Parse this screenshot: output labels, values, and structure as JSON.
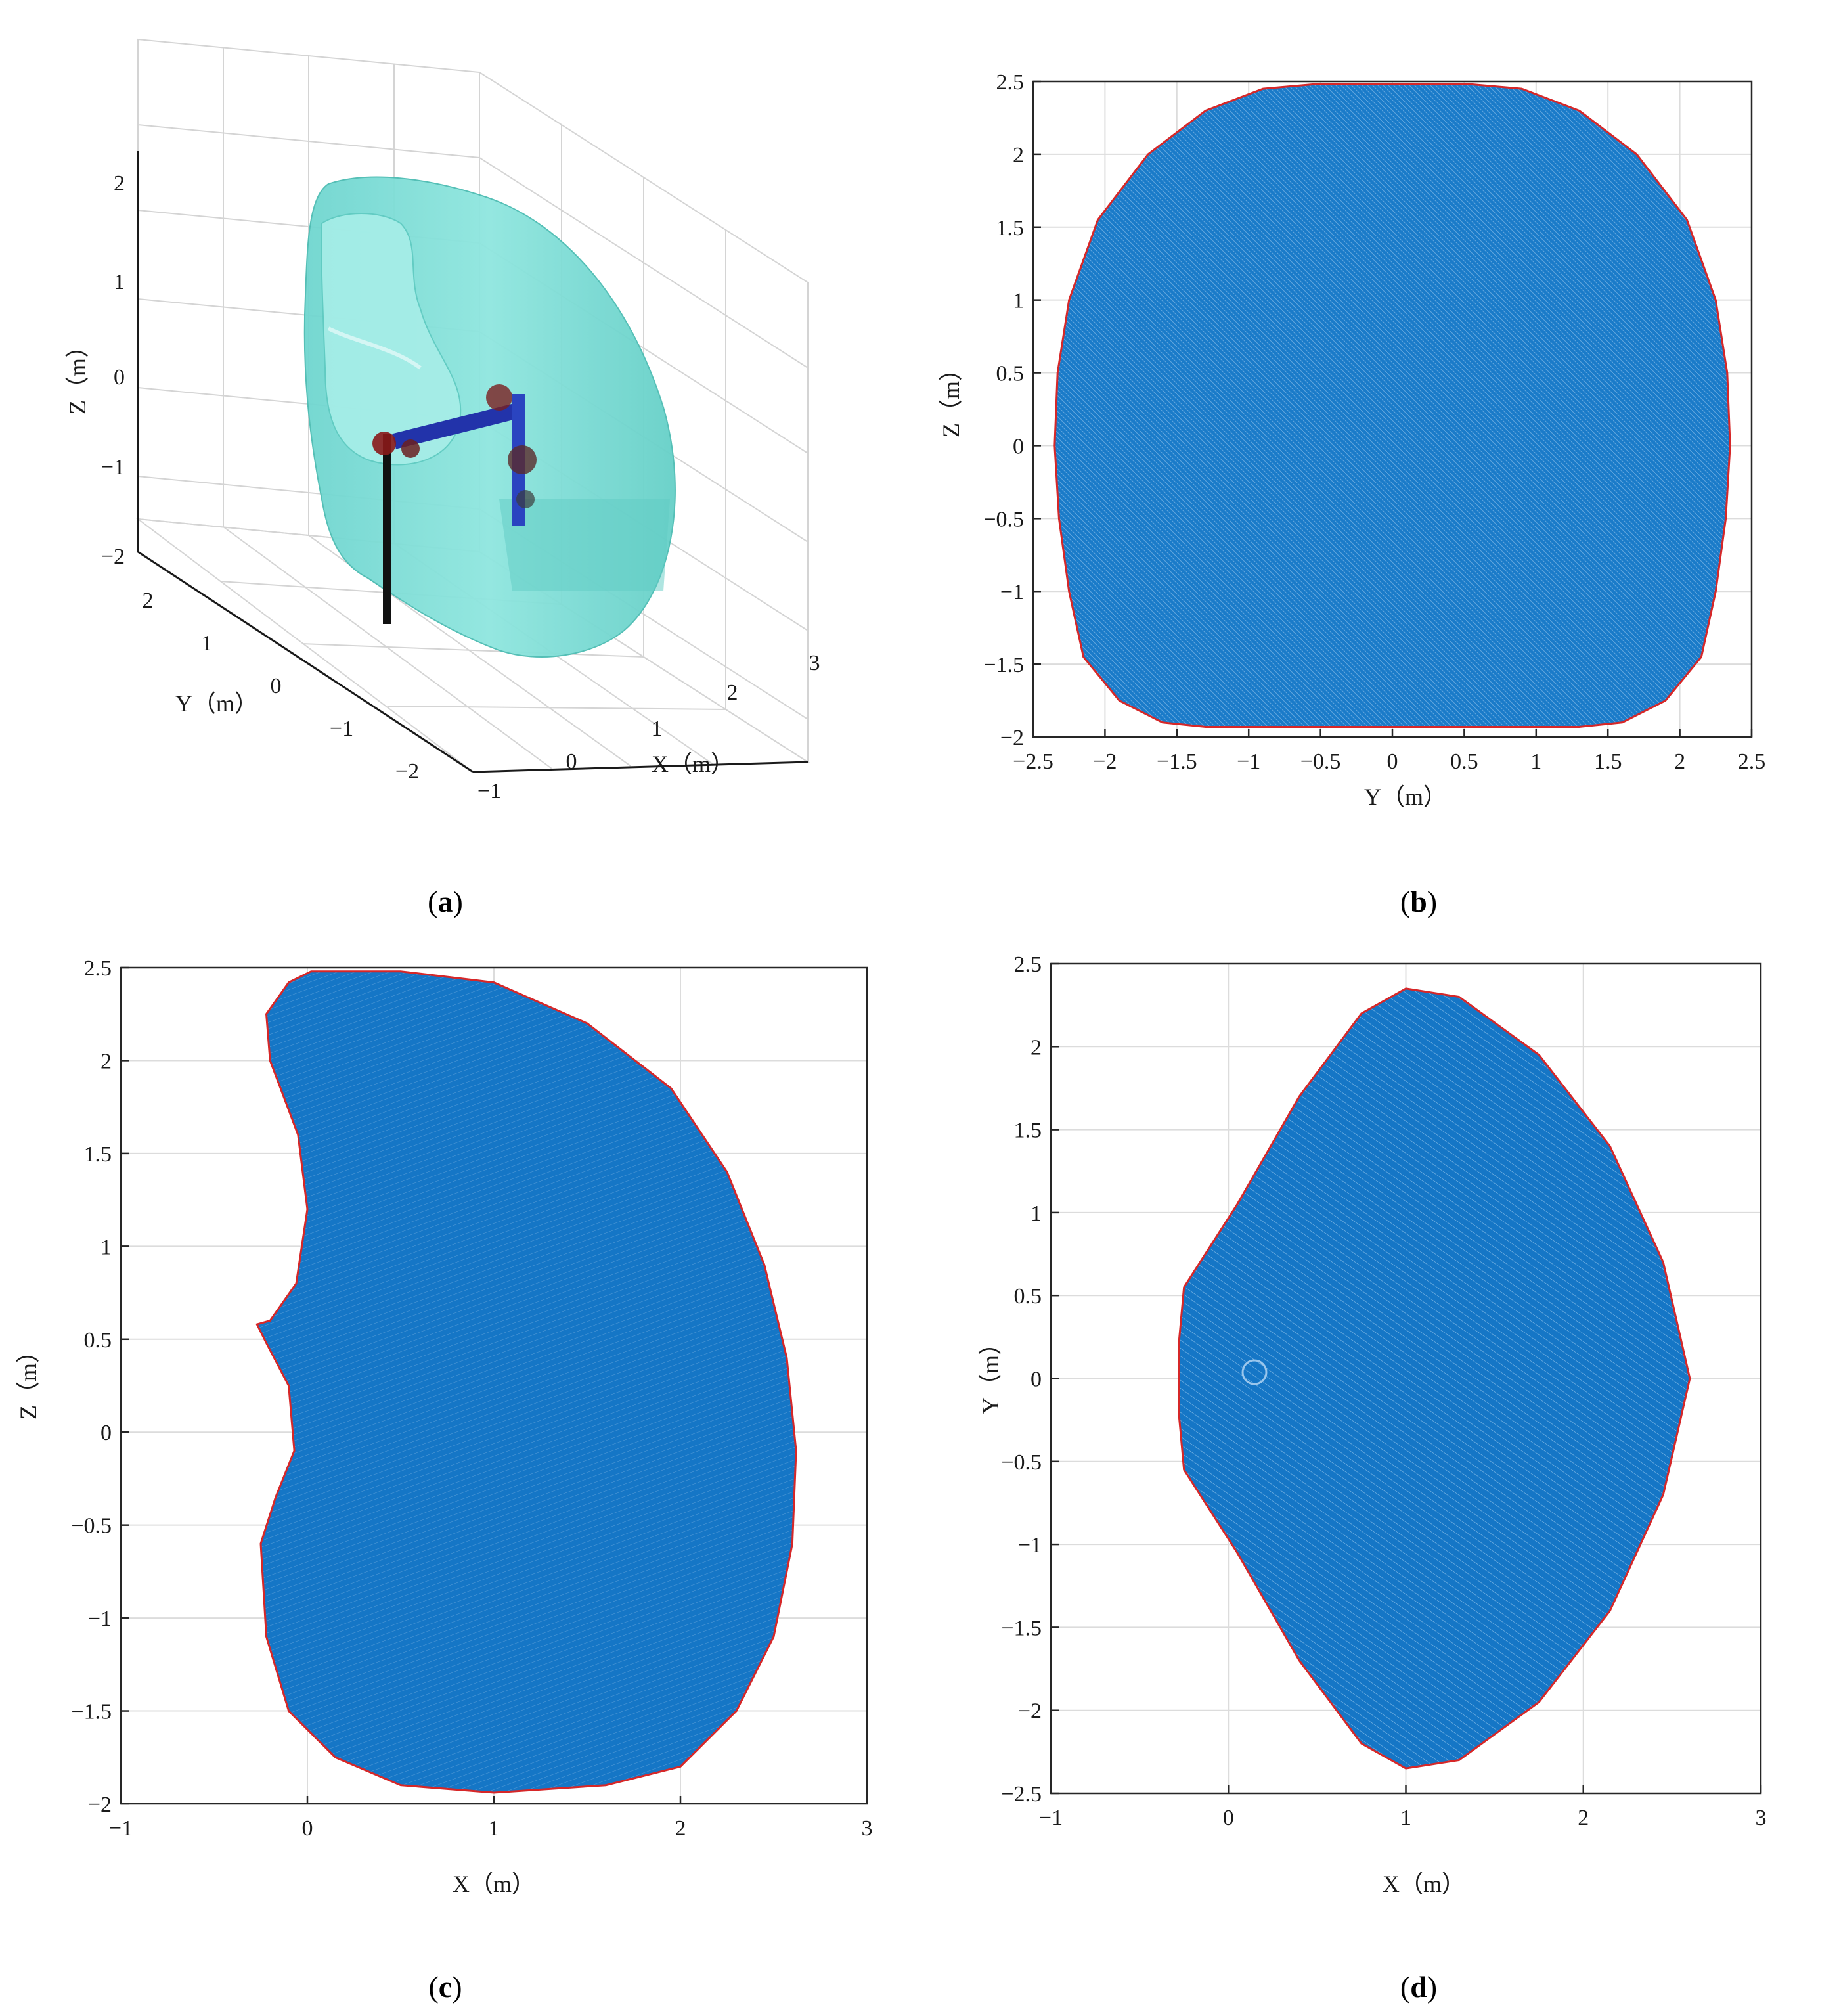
{
  "colors": {
    "scatter": "#0072bd",
    "boundary": "#d62728",
    "surface": "#7fe0d8",
    "link": "#2233aa",
    "joint": "#7a1f1f",
    "base": "#111111"
  },
  "captions": {
    "a": {
      "open": "(",
      "letter": "a",
      "close": ")"
    },
    "b": {
      "open": "(",
      "letter": "b",
      "close": ")"
    },
    "c": {
      "open": "(",
      "letter": "c",
      "close": ")"
    },
    "d": {
      "open": "(",
      "letter": "d",
      "close": ")"
    }
  },
  "chart_data": [
    {
      "id": "a",
      "type": "scatter",
      "projection": "3d",
      "description_source": "workspace surface with robot arm",
      "xlabel": "X（m）",
      "ylabel": "Y（m）",
      "zlabel": "Z（m）",
      "xticks": [
        "−1",
        "0",
        "1",
        "2",
        "3"
      ],
      "yticks": [
        "−2",
        "−1",
        "0",
        "1",
        "2"
      ],
      "zticks": [
        "−2",
        "−1",
        "0",
        "1",
        "2"
      ],
      "xlim": [
        -1,
        3
      ],
      "ylim": [
        -2.5,
        2.5
      ],
      "zlim": [
        -2,
        2.5
      ],
      "grid": true
    },
    {
      "id": "b",
      "type": "scatter",
      "xlabel": "Y（m）",
      "ylabel": "Z（m）",
      "xlim": [
        -2.5,
        2.5
      ],
      "ylim": [
        -2,
        2.5
      ],
      "xticks": [
        "−2.5",
        "−2",
        "−1.5",
        "−1",
        "−0.5",
        "0",
        "0.5",
        "1",
        "1.5",
        "2",
        "2.5"
      ],
      "yticks": [
        "−2",
        "−1.5",
        "−1",
        "−0.5",
        "0",
        "0.5",
        "1",
        "1.5",
        "2",
        "2.5"
      ],
      "grid": true,
      "boundary": [
        [
          -0.55,
          2.48
        ],
        [
          0.55,
          2.48
        ],
        [
          0.9,
          2.45
        ],
        [
          1.3,
          2.3
        ],
        [
          1.7,
          2.0
        ],
        [
          2.05,
          1.55
        ],
        [
          2.25,
          1.0
        ],
        [
          2.33,
          0.5
        ],
        [
          2.35,
          0.0
        ],
        [
          2.32,
          -0.5
        ],
        [
          2.25,
          -1.0
        ],
        [
          2.15,
          -1.45
        ],
        [
          1.9,
          -1.75
        ],
        [
          1.6,
          -1.9
        ],
        [
          1.3,
          -1.93
        ],
        [
          -1.3,
          -1.93
        ],
        [
          -1.6,
          -1.9
        ],
        [
          -1.9,
          -1.75
        ],
        [
          -2.15,
          -1.45
        ],
        [
          -2.25,
          -1.0
        ],
        [
          -2.32,
          -0.5
        ],
        [
          -2.35,
          0.0
        ],
        [
          -2.33,
          0.5
        ],
        [
          -2.25,
          1.0
        ],
        [
          -2.05,
          1.55
        ],
        [
          -1.7,
          2.0
        ],
        [
          -1.3,
          2.3
        ],
        [
          -0.9,
          2.45
        ]
      ]
    },
    {
      "id": "c",
      "type": "scatter",
      "xlabel": "X（m）",
      "ylabel": "Z（m）",
      "xlim": [
        -1,
        3
      ],
      "ylim": [
        -2,
        2.5
      ],
      "xticks": [
        "−1",
        "0",
        "1",
        "2",
        "3"
      ],
      "yticks": [
        "−2",
        "−1.5",
        "−1",
        "−0.5",
        "0",
        "0.5",
        "1",
        "1.5",
        "2",
        "2.5"
      ],
      "grid": true,
      "boundary": [
        [
          0.02,
          2.48
        ],
        [
          0.5,
          2.48
        ],
        [
          1.0,
          2.42
        ],
        [
          1.5,
          2.2
        ],
        [
          1.95,
          1.85
        ],
        [
          2.25,
          1.4
        ],
        [
          2.45,
          0.9
        ],
        [
          2.57,
          0.4
        ],
        [
          2.62,
          -0.1
        ],
        [
          2.6,
          -0.6
        ],
        [
          2.5,
          -1.1
        ],
        [
          2.3,
          -1.5
        ],
        [
          2.0,
          -1.8
        ],
        [
          1.6,
          -1.9
        ],
        [
          1.0,
          -1.94
        ],
        [
          0.5,
          -1.9
        ],
        [
          0.15,
          -1.75
        ],
        [
          -0.1,
          -1.5
        ],
        [
          -0.22,
          -1.1
        ],
        [
          -0.25,
          -0.6
        ],
        [
          -0.17,
          -0.35
        ],
        [
          -0.07,
          -0.1
        ],
        [
          -0.1,
          0.25
        ],
        [
          -0.22,
          0.48
        ],
        [
          -0.27,
          0.58
        ],
        [
          -0.2,
          0.6
        ],
        [
          -0.06,
          0.8
        ],
        [
          0.0,
          1.2
        ],
        [
          -0.05,
          1.6
        ],
        [
          -0.2,
          2.0
        ],
        [
          -0.22,
          2.25
        ],
        [
          -0.1,
          2.42
        ]
      ]
    },
    {
      "id": "d",
      "type": "scatter",
      "xlabel": "X（m）",
      "ylabel": "Y（m）",
      "xlim": [
        -1,
        3
      ],
      "ylim": [
        -2.5,
        2.5
      ],
      "xticks": [
        "−1",
        "0",
        "1",
        "2",
        "3"
      ],
      "yticks": [
        "−2.5",
        "−2",
        "−1.5",
        "−1",
        "−0.5",
        "0",
        "0.5",
        "1",
        "1.5",
        "2",
        "2.5"
      ],
      "grid": true,
      "boundary": [
        [
          1.0,
          2.35
        ],
        [
          1.3,
          2.3
        ],
        [
          1.75,
          1.95
        ],
        [
          2.15,
          1.4
        ],
        [
          2.45,
          0.7
        ],
        [
          2.6,
          0.0
        ],
        [
          2.45,
          -0.7
        ],
        [
          2.15,
          -1.4
        ],
        [
          1.75,
          -1.95
        ],
        [
          1.3,
          -2.3
        ],
        [
          1.0,
          -2.35
        ],
        [
          0.75,
          -2.2
        ],
        [
          0.4,
          -1.7
        ],
        [
          0.05,
          -1.05
        ],
        [
          -0.25,
          -0.55
        ],
        [
          -0.28,
          -0.2
        ],
        [
          -0.28,
          0.2
        ],
        [
          -0.25,
          0.55
        ],
        [
          0.05,
          1.05
        ],
        [
          0.4,
          1.7
        ],
        [
          0.75,
          2.2
        ]
      ]
    }
  ]
}
